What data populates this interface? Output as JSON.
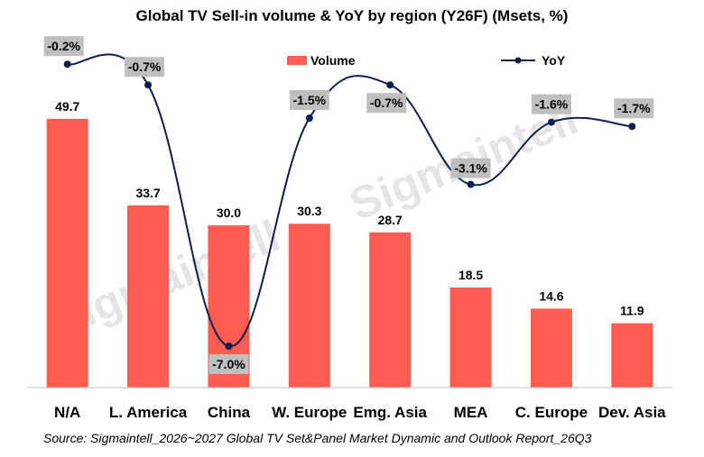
{
  "chart_data": {
    "type": "bar",
    "title": "Global TV Sell-in volume & YoY by region (Y26F) (Msets, %)",
    "categories": [
      "N/A",
      "L. America",
      "China",
      "W. Europe",
      "Emg. Asia",
      "MEA",
      "C. Europe",
      "Dev. Asia"
    ],
    "series": [
      {
        "name": "Volume",
        "type": "bar",
        "values": [
          49.7,
          33.7,
          30.0,
          30.3,
          28.7,
          18.5,
          14.6,
          11.9
        ],
        "labels": [
          "49.7",
          "33.7",
          "30.0",
          "30.3",
          "28.7",
          "18.5",
          "14.6",
          "11.9"
        ],
        "color": "#FF5B50"
      },
      {
        "name": "YoY",
        "type": "line",
        "values": [
          -0.2,
          -0.7,
          -7.0,
          -1.5,
          -0.7,
          -3.1,
          -1.6,
          -1.7
        ],
        "labels": [
          "-0.2%",
          "-0.7%",
          "-7.0%",
          "-1.5%",
          "-0.7%",
          "-3.1%",
          "-1.6%",
          "-1.7%"
        ],
        "color": "#0D1F4F"
      }
    ],
    "legend_position": "top",
    "grid": false,
    "watermark": "Sigmaintell"
  },
  "source": "Source: Sigmaintell_2026~2027 Global TV Set&Panel Market Dynamic and Outlook Report_26Q3"
}
